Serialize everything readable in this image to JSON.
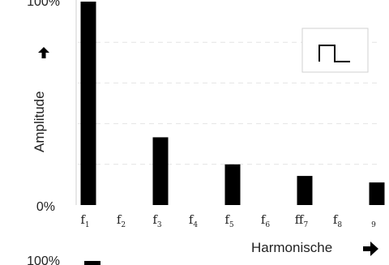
{
  "chart_data": {
    "type": "bar",
    "categories": [
      "f1",
      "f2",
      "f3",
      "f4",
      "f5",
      "f6",
      "f7",
      "f8",
      "f9"
    ],
    "category_labels": [
      {
        "base": "f",
        "sub": "1"
      },
      {
        "base": "f",
        "sub": "2"
      },
      {
        "base": "f",
        "sub": "3"
      },
      {
        "base": "f",
        "sub": "4"
      },
      {
        "base": "f",
        "sub": "5"
      },
      {
        "base": "f",
        "sub": "6"
      },
      {
        "base": "ff",
        "sub": "7"
      },
      {
        "base": "f",
        "sub": "8"
      },
      {
        "base": "",
        "sub": "9"
      }
    ],
    "values": [
      100,
      0,
      33.3,
      0,
      20,
      0,
      14.3,
      0,
      11.1
    ],
    "ylabel": "Amplitude",
    "xlabel": "Harmonische",
    "ylim": [
      0,
      100
    ],
    "y_tick_labels": {
      "top": "100%",
      "bottom": "0%"
    },
    "bottom_partial_tick": "100%",
    "grid": "dashed horizontal",
    "legend": "top-right",
    "inset_icon": "square-wave-icon",
    "bar_color": "#000000"
  }
}
